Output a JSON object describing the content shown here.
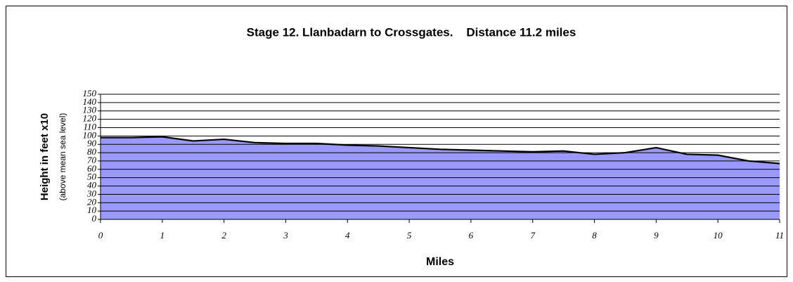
{
  "chart_data": {
    "type": "area",
    "title": "Stage 12. Llanbadarn to Crossgates.    Distance 11.2 miles",
    "ylabel": "Height in feet x10",
    "ylabel_sub": "(above mean sea level)",
    "xlabel": "Miles",
    "x": [
      0,
      0.5,
      1,
      1.5,
      2,
      2.5,
      3,
      3.5,
      4,
      4.5,
      5,
      5.5,
      6,
      6.5,
      7,
      7.5,
      8,
      8.5,
      9,
      9.5,
      10,
      10.5,
      11
    ],
    "values": [
      98,
      98,
      99,
      94,
      96,
      92,
      91,
      91,
      89,
      88,
      86,
      84,
      83,
      82,
      81,
      82,
      78,
      80,
      86,
      78,
      77,
      70,
      67
    ],
    "color": "#9999ff",
    "xlim": [
      0,
      11
    ],
    "xticks": [
      0,
      1,
      2,
      3,
      4,
      5,
      6,
      7,
      8,
      9,
      10,
      11
    ],
    "ylim": [
      0,
      150
    ],
    "yticks": [
      0,
      10,
      20,
      30,
      40,
      50,
      60,
      70,
      80,
      90,
      100,
      110,
      120,
      130,
      140,
      150
    ],
    "grid": true
  }
}
